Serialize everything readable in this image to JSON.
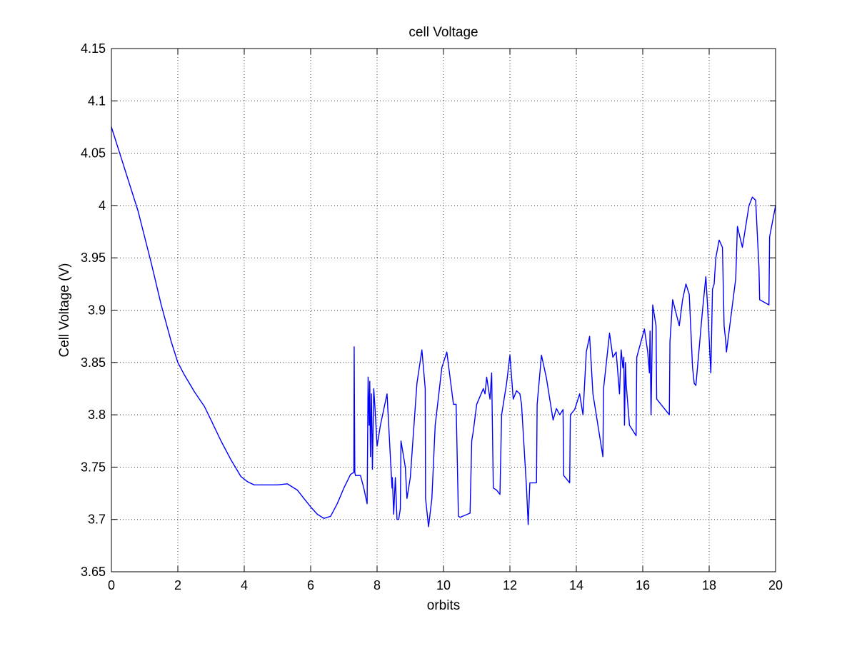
{
  "chart_data": {
    "type": "line",
    "title": "cell Voltage",
    "xlabel": "orbits",
    "ylabel": "Cell Voltage (V)",
    "xlim": [
      0,
      20
    ],
    "ylim": [
      3.65,
      4.15
    ],
    "xticks": [
      0,
      2,
      4,
      6,
      8,
      10,
      12,
      14,
      16,
      18,
      20
    ],
    "yticks": [
      3.65,
      3.7,
      3.75,
      3.8,
      3.85,
      3.9,
      3.95,
      4.0,
      4.05,
      4.1,
      4.15
    ],
    "xtick_labels": [
      "0",
      "2",
      "4",
      "6",
      "8",
      "10",
      "12",
      "14",
      "16",
      "18",
      "20"
    ],
    "ytick_labels": [
      "3.65",
      "3.7",
      "3.75",
      "3.8",
      "3.85",
      "3.9",
      "3.95",
      "4",
      "4.05",
      "4.1",
      "4.15"
    ],
    "grid": true,
    "colors": {
      "series": "#0000ff",
      "axes": "#000000",
      "background": "#ffffff"
    },
    "series": [
      {
        "x": [
          0,
          0.1,
          0.3,
          0.5,
          0.8,
          1.0,
          1.2,
          1.5,
          1.8,
          2.0,
          2.2,
          2.5,
          2.8,
          3.0,
          3.3,
          3.6,
          3.9,
          4.1,
          4.3,
          4.5,
          4.8,
          5.0,
          5.3,
          5.6,
          5.8,
          6.0,
          6.2,
          6.4,
          6.6,
          6.8,
          7.0,
          7.2,
          7.3,
          7.31,
          7.33,
          7.35,
          7.5,
          7.6,
          7.7,
          7.73,
          7.76,
          7.78,
          7.8,
          7.83,
          7.86,
          7.9,
          7.95,
          8.0,
          8.1,
          8.3,
          8.45,
          8.46,
          8.5,
          8.55,
          8.6,
          8.65,
          8.7,
          8.72,
          8.85,
          8.9,
          9.0,
          9.2,
          9.35,
          9.45,
          9.46,
          9.55,
          9.65,
          9.75,
          9.95,
          10.1,
          10.3,
          10.38,
          10.45,
          10.5,
          10.8,
          10.85,
          10.9,
          11.0,
          11.2,
          11.25,
          11.3,
          11.4,
          11.45,
          11.5,
          11.6,
          11.7,
          11.75,
          11.9,
          12.0,
          12.1,
          12.2,
          12.3,
          12.35,
          12.5,
          12.55,
          12.6,
          12.8,
          12.82,
          12.95,
          13.1,
          13.3,
          13.4,
          13.5,
          13.6,
          13.62,
          13.8,
          13.82,
          13.95,
          14.1,
          14.2,
          14.3,
          14.4,
          14.5,
          14.8,
          14.82,
          15.0,
          15.1,
          15.2,
          15.3,
          15.35,
          15.4,
          15.43,
          15.45,
          15.48,
          15.5,
          15.6,
          15.8,
          15.82,
          16.05,
          16.15,
          16.2,
          16.22,
          16.25,
          16.3,
          16.4,
          16.42,
          16.8,
          16.82,
          16.9,
          17.1,
          17.2,
          17.3,
          17.4,
          17.5,
          17.55,
          17.6,
          17.8,
          17.9,
          17.95,
          18.05,
          18.1,
          18.15,
          18.2,
          18.3,
          18.4,
          18.45,
          18.5,
          18.52,
          18.8,
          18.85,
          19.0,
          19.2,
          19.3,
          19.4,
          19.5,
          19.52,
          19.8,
          19.82,
          20.0
        ],
        "y": [
          4.075,
          4.065,
          4.045,
          4.025,
          3.995,
          3.97,
          3.945,
          3.905,
          3.87,
          3.85,
          3.838,
          3.822,
          3.808,
          3.795,
          3.775,
          3.757,
          3.741,
          3.736,
          3.733,
          3.733,
          3.733,
          3.733,
          3.734,
          3.728,
          3.72,
          3.712,
          3.705,
          3.701,
          3.703,
          3.715,
          3.73,
          3.743,
          3.745,
          3.865,
          3.745,
          3.742,
          3.742,
          3.73,
          3.715,
          3.836,
          3.79,
          3.832,
          3.76,
          3.82,
          3.748,
          3.825,
          3.8,
          3.77,
          3.79,
          3.82,
          3.73,
          3.74,
          3.705,
          3.74,
          3.7,
          3.7,
          3.71,
          3.775,
          3.75,
          3.72,
          3.74,
          3.83,
          3.862,
          3.825,
          3.72,
          3.693,
          3.72,
          3.79,
          3.845,
          3.86,
          3.81,
          3.81,
          3.703,
          3.702,
          3.706,
          3.775,
          3.785,
          3.81,
          3.825,
          3.82,
          3.836,
          3.815,
          3.84,
          3.73,
          3.728,
          3.724,
          3.8,
          3.83,
          3.857,
          3.815,
          3.823,
          3.82,
          3.81,
          3.73,
          3.695,
          3.735,
          3.735,
          3.81,
          3.857,
          3.835,
          3.795,
          3.806,
          3.8,
          3.805,
          3.742,
          3.735,
          3.8,
          3.805,
          3.82,
          3.8,
          3.86,
          3.875,
          3.82,
          3.76,
          3.825,
          3.878,
          3.855,
          3.86,
          3.82,
          3.862,
          3.845,
          3.855,
          3.79,
          3.85,
          3.83,
          3.79,
          3.78,
          3.855,
          3.882,
          3.86,
          3.84,
          3.88,
          3.8,
          3.905,
          3.885,
          3.815,
          3.8,
          3.87,
          3.91,
          3.885,
          3.91,
          3.925,
          3.915,
          3.845,
          3.83,
          3.828,
          3.9,
          3.932,
          3.905,
          3.84,
          3.92,
          3.925,
          3.95,
          3.967,
          3.96,
          3.885,
          3.87,
          3.86,
          3.93,
          3.98,
          3.96,
          4.0,
          4.008,
          4.005,
          3.94,
          3.91,
          3.905,
          3.97,
          4.0
        ]
      }
    ]
  }
}
